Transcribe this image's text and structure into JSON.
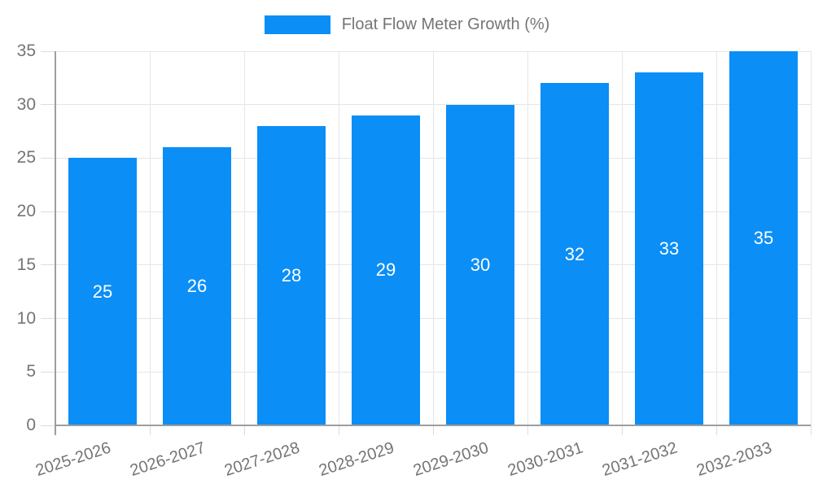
{
  "legend": {
    "label": "Float Flow Meter Growth (%)"
  },
  "colors": {
    "bar": "#0b8ef6",
    "grid": "#e6e6e6",
    "axis": "#9e9e9e",
    "axis_text": "#757575",
    "bar_label_text": "#ffffff"
  },
  "chart_data": {
    "type": "bar",
    "title": "",
    "xlabel": "",
    "ylabel": "",
    "categories": [
      "2025-2026",
      "2026-2027",
      "2027-2028",
      "2028-2029",
      "2029-2030",
      "2030-2031",
      "2031-2032",
      "2032-2033"
    ],
    "series": [
      {
        "name": "Float Flow Meter Growth (%)",
        "values": [
          25,
          26,
          28,
          29,
          30,
          32,
          33,
          35
        ]
      }
    ],
    "bar_labels": [
      25,
      26,
      28,
      29,
      30,
      32,
      33,
      35
    ],
    "ylim": [
      0,
      35
    ],
    "yticks": [
      0,
      5,
      10,
      15,
      20,
      25,
      30,
      35
    ],
    "grid": true,
    "legend_position": "top"
  }
}
